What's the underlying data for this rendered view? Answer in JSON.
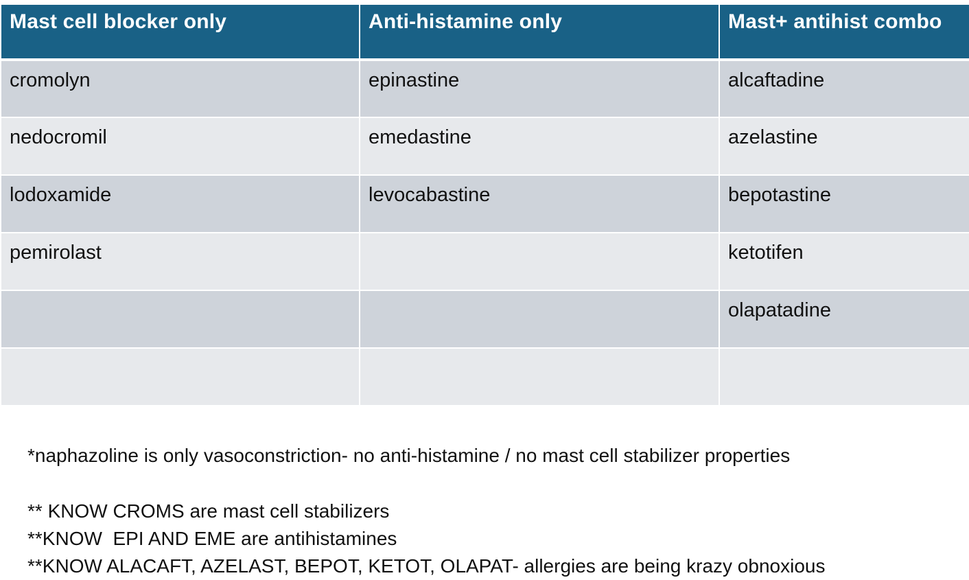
{
  "table": {
    "headers": [
      "Mast cell blocker only",
      "Anti-histamine only",
      "Mast+ antihist combo"
    ],
    "rows": [
      [
        "cromolyn",
        "epinastine",
        "alcaftadine"
      ],
      [
        "nedocromil",
        "emedastine",
        "azelastine"
      ],
      [
        "lodoxamide",
        "levocabastine",
        "bepotastine"
      ],
      [
        "pemirolast",
        "",
        "ketotifen"
      ],
      [
        "",
        "",
        "olapatadine"
      ],
      [
        "",
        "",
        ""
      ]
    ]
  },
  "notes": {
    "naphazoline": "*naphazoline is only vasoconstriction- no anti-histamine / no mast cell stabilizer properties",
    "know_croms": "** KNOW CROMS are mast cell stabilizers",
    "know_epi_eme": "**KNOW  EPI AND EME are antihistamines",
    "know_combo": "**KNOW ALACAFT, AZELAST, BEPOT, KETOT, OLAPAT- allergies are being krazy obnoxious"
  },
  "colors": {
    "header_bg": "#196186",
    "row_odd_bg": "#ced3da",
    "row_even_bg": "#e7e9ec"
  }
}
